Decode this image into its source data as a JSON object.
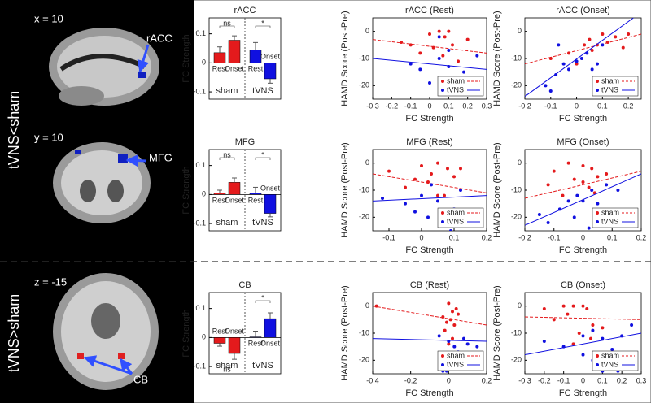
{
  "group_labels": [
    "tVNS<sham",
    "tVNS>sham"
  ],
  "brain_panels": [
    {
      "coordinate": "x = 10",
      "region": "rACC"
    },
    {
      "coordinate": "y = 10",
      "region": "MFG"
    },
    {
      "coordinate": "z = -15",
      "region": "CB"
    }
  ],
  "chart_data": [
    {
      "type": "bar",
      "title": "rACC",
      "ylabel": "FC Strength",
      "categories": [
        "Rest",
        "Onset"
      ],
      "ylim": [
        -0.125,
        0.155
      ],
      "yticks": [
        -0.1,
        0,
        0.1
      ],
      "series": [
        {
          "name": "sham",
          "color": "#e41a1c",
          "values": [
            0.035,
            0.078
          ],
          "errors": [
            0.02,
            0.015
          ],
          "significance": "ns"
        },
        {
          "name": "tVNS",
          "color": "#1010e0",
          "values": [
            0.045,
            -0.055
          ],
          "errors": [
            0.025,
            0.015
          ],
          "significance": "*"
        }
      ]
    },
    {
      "type": "scatter",
      "title": "rACC (Rest)",
      "xlabel": "FC Strength",
      "ylabel": "HAMD Score (Post-Pre)",
      "xlim": [
        -0.3,
        0.3
      ],
      "xticks": [
        -0.3,
        -0.2,
        -0.1,
        0,
        0.1,
        0.2,
        0.3
      ],
      "ylim": [
        -25,
        5
      ],
      "yticks": [
        -20,
        -10,
        0
      ],
      "legend": "lower right",
      "series": [
        {
          "name": "sham",
          "color": "#e41a1c",
          "line_style": "dashed",
          "x": [
            0.1,
            0.05,
            0,
            0.08,
            -0.15,
            0.2,
            0.02,
            0.12,
            -0.05,
            0.15,
            -0.1,
            0.07
          ],
          "values": [
            0,
            0,
            -1,
            -2,
            -4,
            -3,
            -6,
            -5,
            -8,
            -11,
            -5,
            -9
          ],
          "fit": {
            "x": [
              -0.3,
              0.3
            ],
            "y": [
              -3,
              -8
            ]
          }
        },
        {
          "name": "tVNS",
          "color": "#1010e0",
          "line_style": "solid",
          "x": [
            0.05,
            0.1,
            -0.05,
            0.1,
            0.18,
            0,
            0.1,
            0.2,
            -0.1,
            0.05,
            0.12,
            0.25
          ],
          "values": [
            -2,
            -7,
            -14,
            -13,
            -15,
            -19,
            -22,
            -20,
            -12,
            -10,
            -17,
            -9
          ],
          "fit": {
            "x": [
              -0.3,
              0.3
            ],
            "y": [
              -10,
              -14
            ]
          }
        }
      ]
    },
    {
      "type": "scatter",
      "title": "rACC (Onset)",
      "xlabel": "FC Strength",
      "ylabel": "HAMD Score (Post-Pre)",
      "xlim": [
        -0.2,
        0.25
      ],
      "xticks": [
        -0.2,
        -0.1,
        0,
        0.1,
        0.2
      ],
      "ylim": [
        -25,
        5
      ],
      "yticks": [
        -20,
        -10,
        0
      ],
      "legend": "lower right",
      "series": [
        {
          "name": "sham",
          "color": "#e41a1c",
          "line_style": "dashed",
          "x": [
            0.08,
            0.1,
            0.15,
            0.2,
            0.05,
            -0.03,
            0,
            0.03,
            0.12,
            -0.1,
            0.18,
            0.06
          ],
          "values": [
            -5,
            -1,
            -2,
            -1,
            -3,
            -8,
            -12,
            -5,
            -4,
            -10,
            -6,
            -7
          ],
          "fit": {
            "x": [
              -0.2,
              0.25
            ],
            "y": [
              -12,
              -1
            ]
          }
        },
        {
          "name": "tVNS",
          "color": "#1010e0",
          "line_style": "solid",
          "x": [
            -0.12,
            -0.1,
            -0.08,
            -0.05,
            0,
            0.02,
            0.04,
            0.08,
            0.1,
            -0.03,
            -0.07,
            0.06
          ],
          "values": [
            -20,
            -22,
            -16,
            -12,
            -11,
            -10,
            -8,
            -12,
            -5,
            -14,
            -5,
            -14
          ],
          "fit": {
            "x": [
              -0.2,
              0.22
            ],
            "y": [
              -24,
              5
            ]
          }
        }
      ]
    },
    {
      "type": "bar",
      "title": "MFG",
      "ylabel": "FC Strength",
      "categories": [
        "Rest",
        "Onset"
      ],
      "ylim": [
        -0.125,
        0.155
      ],
      "yticks": [
        -0.1,
        0,
        0.1
      ],
      "series": [
        {
          "name": "sham",
          "color": "#e41a1c",
          "values": [
            0.005,
            0.042
          ],
          "errors": [
            0.01,
            0.015
          ],
          "significance": "ns"
        },
        {
          "name": "tVNS",
          "color": "#1010e0",
          "values": [
            0.005,
            -0.065
          ],
          "errors": [
            0.02,
            0.012
          ],
          "significance": "*"
        }
      ]
    },
    {
      "type": "scatter",
      "title": "MFG (Rest)",
      "xlabel": "FC Strength",
      "ylabel": "HAMD Score (Post-Pre)",
      "xlim": [
        -0.15,
        0.2
      ],
      "xticks": [
        -0.1,
        0,
        0.1,
        0.2
      ],
      "ylim": [
        -25,
        5
      ],
      "yticks": [
        -20,
        -10,
        0
      ],
      "legend": "lower right",
      "series": [
        {
          "name": "sham",
          "color": "#e41a1c",
          "line_style": "dashed",
          "x": [
            0.05,
            0,
            0.08,
            -0.1,
            0.02,
            0.05,
            0.1,
            -0.05,
            0.12,
            0.03,
            0.07,
            -0.02
          ],
          "values": [
            0,
            -1,
            -2,
            -3,
            -7,
            -12,
            -5,
            -9,
            -2,
            -4,
            -12,
            -6
          ],
          "fit": {
            "x": [
              -0.15,
              0.2
            ],
            "y": [
              -4,
              -11
            ]
          }
        },
        {
          "name": "tVNS",
          "color": "#1010e0",
          "line_style": "solid",
          "x": [
            -0.12,
            0,
            0.05,
            0.1,
            0.02,
            0.07,
            0.15,
            -0.05,
            0.12,
            0.03,
            0.09,
            -0.02
          ],
          "values": [
            -13,
            -12,
            -14,
            -17,
            -20,
            -22,
            -19,
            -15,
            -10,
            -8,
            -25,
            -18
          ],
          "fit": {
            "x": [
              -0.15,
              0.2
            ],
            "y": [
              -14,
              -12
            ]
          }
        }
      ]
    },
    {
      "type": "scatter",
      "title": "MFG (Onset)",
      "xlabel": "FC Strength",
      "ylabel": "HAMD Score (Post-Pre)",
      "xlim": [
        -0.2,
        0.2
      ],
      "xticks": [
        -0.2,
        -0.1,
        0,
        0.1,
        0.2
      ],
      "ylim": [
        -25,
        5
      ],
      "yticks": [
        -20,
        -10,
        0
      ],
      "legend": "lower right",
      "series": [
        {
          "name": "sham",
          "color": "#e41a1c",
          "line_style": "dashed",
          "x": [
            -0.05,
            0,
            0.03,
            -0.1,
            0,
            -0.03,
            0.05,
            -0.07,
            0.08,
            0.02,
            -0.12,
            0.04
          ],
          "values": [
            0,
            -1,
            -2,
            -3,
            -7,
            -6,
            -5,
            -12,
            -4,
            -9,
            -8,
            -11
          ],
          "fit": {
            "x": [
              -0.2,
              0.2
            ],
            "y": [
              -13,
              -3
            ]
          }
        },
        {
          "name": "tVNS",
          "color": "#1010e0",
          "line_style": "solid",
          "x": [
            -0.15,
            -0.12,
            -0.08,
            -0.05,
            -0.02,
            0,
            0.03,
            0.05,
            0.08,
            -0.03,
            0.02,
            0.12
          ],
          "values": [
            -19,
            -22,
            -17,
            -14,
            -12,
            -14,
            -10,
            -15,
            -8,
            -20,
            -24,
            -10
          ],
          "fit": {
            "x": [
              -0.2,
              0.2
            ],
            "y": [
              -23,
              -4
            ]
          }
        }
      ]
    },
    {
      "type": "bar",
      "title": "CB",
      "ylabel": "FC Strength",
      "categories": [
        "Rest",
        "Onset"
      ],
      "ylim": [
        -0.125,
        0.155
      ],
      "yticks": [
        -0.1,
        0,
        0.1
      ],
      "series": [
        {
          "name": "sham",
          "color": "#e41a1c",
          "values": [
            -0.02,
            -0.055
          ],
          "errors": [
            0.01,
            0.02
          ],
          "significance": "ns"
        },
        {
          "name": "tVNS",
          "color": "#1010e0",
          "values": [
            0.002,
            0.065
          ],
          "errors": [
            0.02,
            0.02
          ],
          "significance": "*"
        }
      ]
    },
    {
      "type": "scatter",
      "title": "CB (Rest)",
      "xlabel": "FC Strength",
      "ylabel": "HAMD Score (Post-Pre)",
      "xlim": [
        -0.4,
        0.2
      ],
      "xticks": [
        -0.4,
        -0.2,
        0,
        0.2
      ],
      "ylim": [
        -25,
        5
      ],
      "yticks": [
        -20,
        -10,
        0
      ],
      "legend": "lower right",
      "series": [
        {
          "name": "sham",
          "color": "#e41a1c",
          "line_style": "dashed",
          "x": [
            -0.38,
            0,
            0.02,
            -0.03,
            0.01,
            0.03,
            -0.02,
            0.05,
            0.02,
            0,
            0.04,
            -0.01
          ],
          "values": [
            0,
            1,
            -2,
            -4,
            -5,
            -7,
            -9,
            -3,
            -12,
            -14,
            -1,
            -6
          ],
          "fit": {
            "x": [
              -0.4,
              0.2
            ],
            "y": [
              0,
              -7
            ]
          }
        },
        {
          "name": "tVNS",
          "color": "#1010e0",
          "line_style": "solid",
          "x": [
            -0.05,
            0,
            0.03,
            0.05,
            0.1,
            0,
            0.05,
            -0.03,
            0.02,
            0.15,
            -0.01,
            0.08
          ],
          "values": [
            -11,
            -13,
            -15,
            -17,
            -14,
            -20,
            -22,
            -24,
            -18,
            -15,
            -24,
            -12
          ],
          "fit": {
            "x": [
              -0.4,
              0.2
            ],
            "y": [
              -12,
              -13
            ]
          }
        }
      ]
    },
    {
      "type": "scatter",
      "title": "CB (Onset)",
      "xlabel": "FC Strength",
      "ylabel": "HAMD Score (Post-Pre)",
      "xlim": [
        -0.3,
        0.3
      ],
      "xticks": [
        -0.3,
        -0.2,
        -0.1,
        0,
        0.1,
        0.2,
        0.3
      ],
      "ylim": [
        -25,
        5
      ],
      "yticks": [
        -20,
        -10,
        0
      ],
      "legend": "lower right",
      "series": [
        {
          "name": "sham",
          "color": "#e41a1c",
          "line_style": "dashed",
          "x": [
            -0.1,
            -0.05,
            0,
            0.02,
            -0.08,
            -0.15,
            0.05,
            -0.02,
            0.1,
            -0.2,
            0.04,
            -0.05
          ],
          "values": [
            0,
            0,
            0,
            -1,
            -3,
            -5,
            -7,
            -10,
            -8,
            -1,
            -12,
            -14
          ],
          "fit": {
            "x": [
              -0.3,
              0.3
            ],
            "y": [
              -4,
              -5
            ]
          }
        },
        {
          "name": "tVNS",
          "color": "#1010e0",
          "line_style": "solid",
          "x": [
            -0.2,
            -0.1,
            0,
            0.05,
            0.1,
            0.15,
            0.2,
            0.25,
            0.05,
            0.1,
            0,
            0.18
          ],
          "values": [
            -13,
            -15,
            -11,
            -9,
            -12,
            -16,
            -11,
            -7,
            -20,
            -24,
            -18,
            -24
          ],
          "fit": {
            "x": [
              -0.3,
              0.3
            ],
            "y": [
              -18,
              -10
            ]
          }
        }
      ]
    }
  ]
}
